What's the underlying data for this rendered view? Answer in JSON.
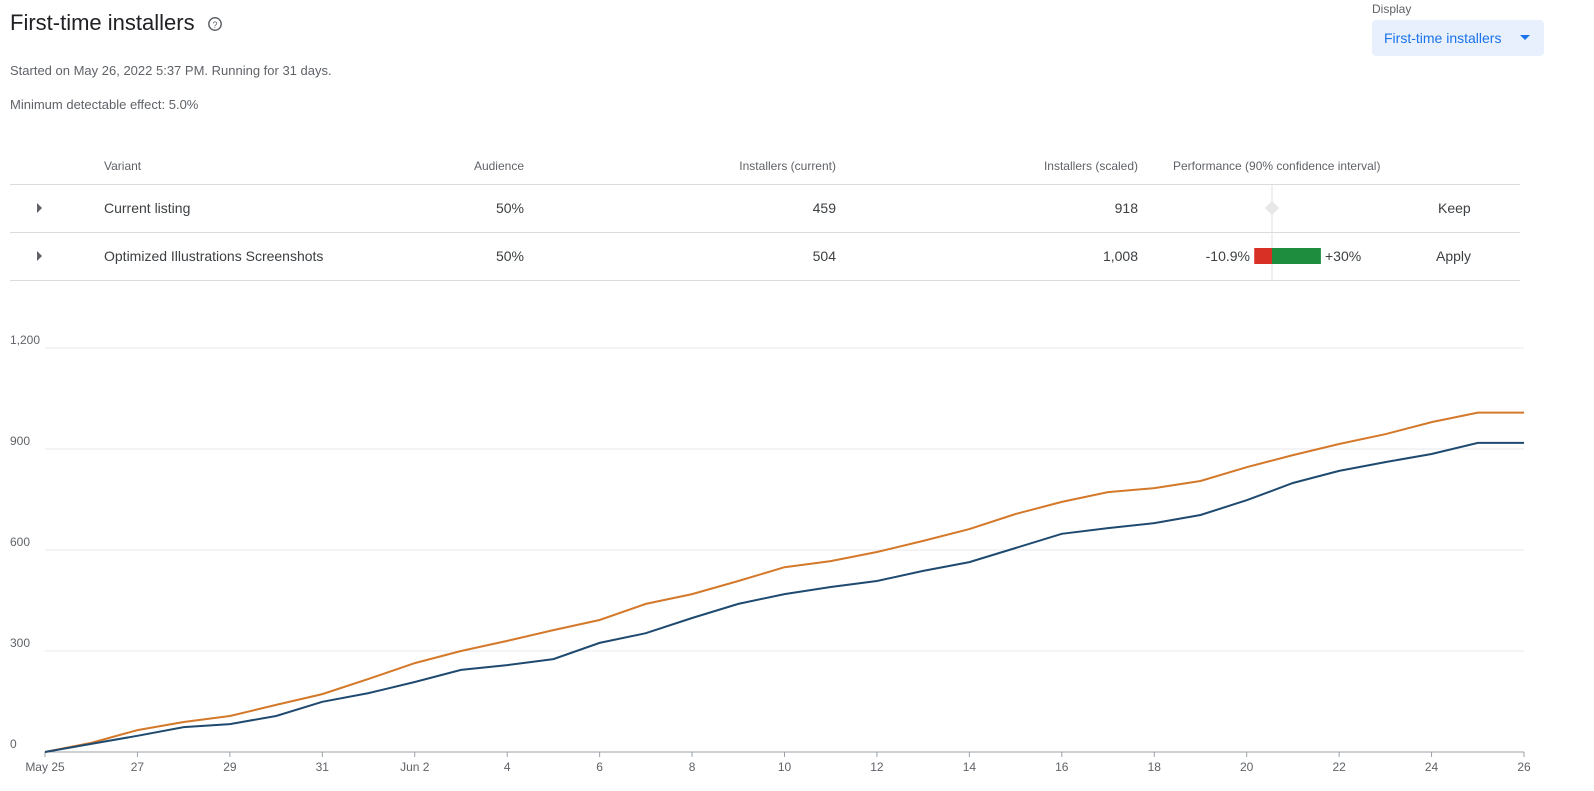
{
  "header": {
    "title": "First-time installers",
    "started": "Started on May 26, 2022 5:37 PM. Running for 31 days.",
    "mde": "Minimum detectable effect: 5.0%",
    "display_label": "Display",
    "display_value": "First-time installers"
  },
  "table": {
    "columns": [
      "Variant",
      "Audience",
      "Installers (current)",
      "Installers (scaled)",
      "Performance (90% confidence interval)"
    ],
    "rows": [
      {
        "variant": "Current listing",
        "audience": "50%",
        "current": "459",
        "scaled": "918",
        "action": "Keep"
      },
      {
        "variant": "Optimized Illustrations Screenshots",
        "audience": "50%",
        "current": "504",
        "scaled": "1,008",
        "action": "Apply",
        "performance": {
          "low": {
            "value": -10.9,
            "label": "-10.9%"
          },
          "high": {
            "value": 30,
            "label": "+30%"
          }
        }
      }
    ]
  },
  "chart_data": {
    "type": "line",
    "categories": [
      "May 25",
      null,
      "27",
      null,
      "29",
      null,
      "31",
      null,
      "Jun 2",
      null,
      "4",
      null,
      "6",
      null,
      "8",
      null,
      "10",
      null,
      "12",
      null,
      "14",
      null,
      "16",
      null,
      "18",
      null,
      "20",
      null,
      "22",
      null,
      "24",
      null,
      "26"
    ],
    "series": [
      {
        "color": "#d4782a",
        "values": [
          0,
          27,
          65,
          89,
          107,
          140,
          172,
          217,
          264,
          300,
          330,
          362,
          392,
          440,
          469,
          508,
          549,
          567,
          594,
          627,
          662,
          707,
          743,
          772,
          784,
          805,
          846,
          882,
          915,
          944,
          980,
          1008,
          1008
        ]
      },
      {
        "color": "#1f4a70",
        "values": [
          0,
          24,
          48,
          74,
          83,
          107,
          149,
          175,
          208,
          244,
          258,
          276,
          324,
          353,
          398,
          440,
          469,
          490,
          508,
          538,
          564,
          606,
          648,
          665,
          680,
          704,
          748,
          799,
          835,
          861,
          885,
          918,
          918
        ]
      }
    ],
    "ylim": [
      0,
      1200
    ],
    "yticks": [
      0,
      300,
      600,
      900,
      {
        "value": 1200,
        "label": "1,200"
      }
    ],
    "grid": true
  }
}
